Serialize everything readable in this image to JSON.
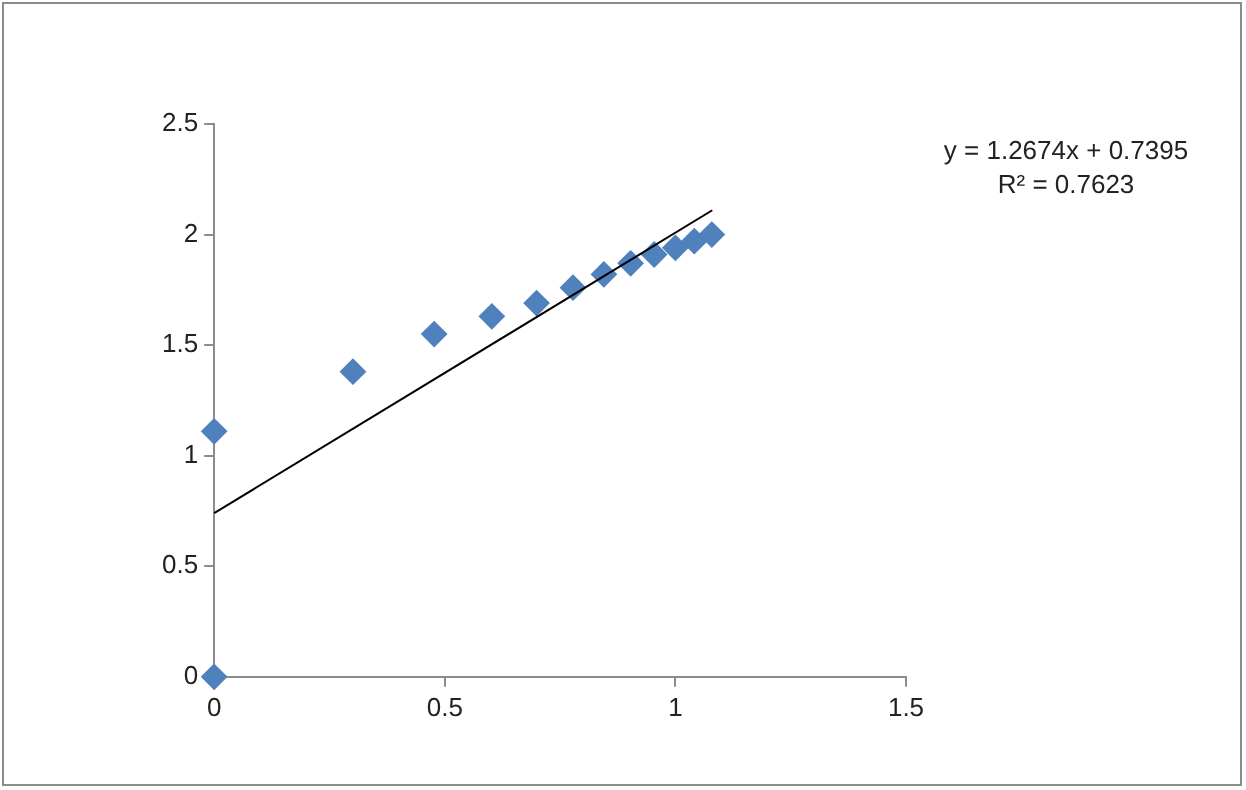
{
  "chart_data": {
    "type": "scatter",
    "xlim": [
      0,
      1.5
    ],
    "xticks": [
      0,
      0.5,
      1,
      1.5
    ],
    "ylim": [
      0,
      2.5
    ],
    "yticks": [
      0,
      0.5,
      1,
      1.5,
      2,
      2.5
    ],
    "grid": false,
    "legend": false,
    "marker": "diamond",
    "series": [
      {
        "type": "scatter",
        "color": "#4f81bd",
        "x": [
          0,
          0,
          0.301,
          0.477,
          0.602,
          0.699,
          0.778,
          0.845,
          0.903,
          0.954,
          1.0,
          1.041,
          1.079
        ],
        "values": [
          0,
          1.11,
          1.38,
          1.55,
          1.63,
          1.69,
          1.76,
          1.82,
          1.87,
          1.91,
          1.94,
          1.97,
          2.0
        ]
      },
      {
        "type": "line",
        "color": "#000000",
        "marker": "none",
        "x": [
          0,
          1.08
        ],
        "values": [
          0.74,
          2.11
        ]
      }
    ],
    "annotations": [
      "y = 1.2674x + 0.7395",
      "R² = 0.7623"
    ]
  }
}
